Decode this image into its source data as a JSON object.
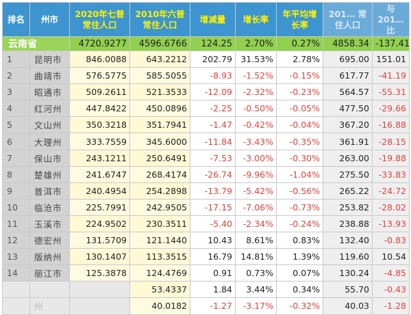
{
  "headers": {
    "rank": "排名",
    "city": "州市",
    "pop2020": "2020年七普常住人口",
    "pop2010": "2010年六普常住人口",
    "change": "增减量",
    "growth": "增长率",
    "annual": "年平均增长率",
    "h_extra1": "201… 常住人口",
    "h_extra2": "与201… 比"
  },
  "province": {
    "name": "云南省",
    "pop2020": "4720.9277",
    "pop2010": "4596.6766",
    "change": "124.25",
    "growth": "2.70%",
    "annual": "0.27%",
    "extra1": "4858.34",
    "extra2": "-137.41"
  },
  "rows": [
    {
      "rank": "1",
      "city": "昆明市",
      "pop2020": "846.0088",
      "pop2010": "643.2212",
      "change": "202.79",
      "growth": "31.53%",
      "annual": "2.78%",
      "extra1": "695.00",
      "extra2": "151.01"
    },
    {
      "rank": "2",
      "city": "曲靖市",
      "pop2020": "576.5775",
      "pop2010": "585.5055",
      "change": "-8.93",
      "growth": "-1.52%",
      "annual": "-0.15%",
      "extra1": "617.77",
      "extra2": "-41.19"
    },
    {
      "rank": "3",
      "city": "昭通市",
      "pop2020": "509.2611",
      "pop2010": "521.3533",
      "change": "-12.09",
      "growth": "-2.32%",
      "annual": "-0.23%",
      "extra1": "564.57",
      "extra2": "-55.31"
    },
    {
      "rank": "4",
      "city": "红河州",
      "pop2020": "447.8422",
      "pop2010": "450.0896",
      "change": "-2.25",
      "growth": "-0.50%",
      "annual": "-0.05%",
      "extra1": "477.50",
      "extra2": "-29.66"
    },
    {
      "rank": "5",
      "city": "文山州",
      "pop2020": "350.3218",
      "pop2010": "351.7941",
      "change": "-1.47",
      "growth": "-0.42%",
      "annual": "-0.04%",
      "extra1": "367.20",
      "extra2": "-16.88"
    },
    {
      "rank": "6",
      "city": "大理州",
      "pop2020": "333.7559",
      "pop2010": "345.6000",
      "change": "-11.84",
      "growth": "-3.43%",
      "annual": "-0.35%",
      "extra1": "361.91",
      "extra2": "-28.15"
    },
    {
      "rank": "7",
      "city": "保山市",
      "pop2020": "243.1211",
      "pop2010": "250.6491",
      "change": "-7.53",
      "growth": "-3.00%",
      "annual": "-0.30%",
      "extra1": "263.00",
      "extra2": "-19.88"
    },
    {
      "rank": "8",
      "city": "楚雄州",
      "pop2020": "241.6747",
      "pop2010": "268.4174",
      "change": "-26.74",
      "growth": "-9.96%",
      "annual": "-1.04%",
      "extra1": "275.50",
      "extra2": "-33.83"
    },
    {
      "rank": "9",
      "city": "普洱市",
      "pop2020": "240.4954",
      "pop2010": "254.2898",
      "change": "-13.79",
      "growth": "-5.42%",
      "annual": "-0.56%",
      "extra1": "265.22",
      "extra2": "-24.72"
    },
    {
      "rank": "10",
      "city": "临沧市",
      "pop2020": "225.7991",
      "pop2010": "242.9505",
      "change": "-17.15",
      "growth": "-7.06%",
      "annual": "-0.73%",
      "extra1": "253.82",
      "extra2": "-28.02"
    },
    {
      "rank": "11",
      "city": "玉溪市",
      "pop2020": "224.9502",
      "pop2010": "230.3511",
      "change": "-5.40",
      "growth": "-2.34%",
      "annual": "-0.24%",
      "extra1": "238.88",
      "extra2": "-13.93"
    },
    {
      "rank": "12",
      "city": "德宏州",
      "pop2020": "131.5709",
      "pop2010": "121.1440",
      "change": "10.43",
      "growth": "8.61%",
      "annual": "0.83%",
      "extra1": "132.40",
      "extra2": "-0.83"
    },
    {
      "rank": "13",
      "city": "版纳州",
      "pop2020": "130.1407",
      "pop2010": "113.3515",
      "change": "16.79",
      "growth": "14.81%",
      "annual": "1.39%",
      "extra1": "119.60",
      "extra2": "10.54"
    },
    {
      "rank": "14",
      "city": "丽江市",
      "pop2020": "125.3878",
      "pop2010": "124.4769",
      "change": "0.91",
      "growth": "0.73%",
      "annual": "0.07%",
      "extra1": "130.24",
      "extra2": "-4.85"
    },
    {
      "rank": "",
      "city": "",
      "pop2020": "",
      "pop2010": "53.4337",
      "change": "1.84",
      "growth": "3.44%",
      "annual": "0.34%",
      "extra1": "55.70",
      "extra2": "-0.43"
    },
    {
      "rank": "",
      "city": "州",
      "pop2020": "",
      "pop2010": "40.0182",
      "change": "-1.27",
      "growth": "-3.17%",
      "annual": "-0.32%",
      "extra1": "40.03",
      "extra2": "-1.28"
    }
  ],
  "colors": {
    "header_bg": "#3c94d0",
    "province_bg": "#92d050",
    "negative": "#e0443a",
    "header_highlight": "#fff200"
  }
}
